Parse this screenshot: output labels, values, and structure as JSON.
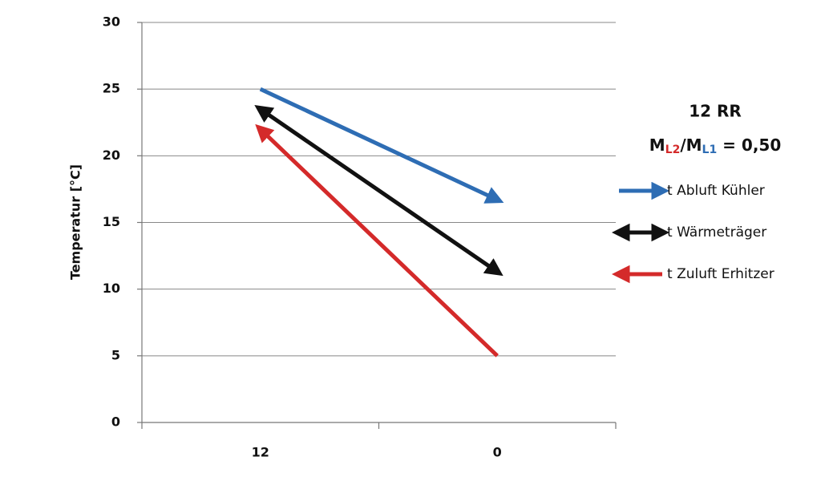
{
  "chart_data": {
    "type": "line",
    "y_label": "Temperatur [°C]",
    "categories": [
      "12",
      "0"
    ],
    "series": [
      {
        "name": "t Abluft Kühler",
        "color": "#2e6db4",
        "values": [
          25,
          16.7
        ],
        "arrow": "end"
      },
      {
        "name": "t Wärmeträger",
        "color": "#111111",
        "values": [
          23.5,
          11.3
        ],
        "arrow": "both"
      },
      {
        "name": "t Zuluft Erhitzer",
        "color": "#d42a2a",
        "values": [
          22,
          5
        ],
        "arrow": "start"
      }
    ],
    "ylim": [
      0,
      30
    ],
    "yticks": [
      0,
      5,
      10,
      15,
      20,
      25,
      30
    ],
    "grid": true,
    "legend": "right",
    "annotation": {
      "title": "12 RR",
      "ratio": [
        "M",
        "L2",
        "/M",
        "L1",
        " = 0,50"
      ]
    }
  }
}
